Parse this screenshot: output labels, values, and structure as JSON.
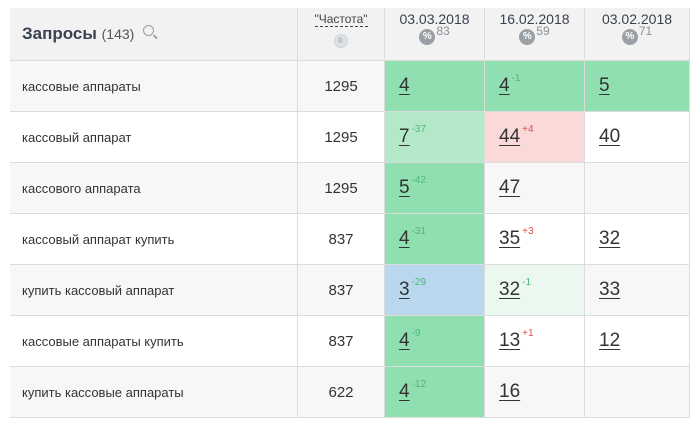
{
  "header": {
    "query_title": "Запросы",
    "query_count": "(143)",
    "frequency_label": "\"Частота\"",
    "dates": [
      {
        "date": "03.03.2018",
        "visibility": "83"
      },
      {
        "date": "16.02.2018",
        "visibility": "59"
      },
      {
        "date": "03.02.2018",
        "visibility": "71"
      }
    ]
  },
  "colors": {
    "green": "#8fdfb1",
    "light_green": "#b3e9c9",
    "pale_green": "#eaf8ef",
    "blue": "#b9d8ee",
    "pink": "#fbd9d9",
    "header_bg": "#f2f2f2",
    "row_alt": "#f7f7f7"
  },
  "rows": [
    {
      "query": "кассовые аппараты",
      "freq": "1295",
      "pos": [
        {
          "v": "4",
          "d": "",
          "bg": "green"
        },
        {
          "v": "4",
          "d": "-1",
          "dir": "up",
          "bg": "green"
        },
        {
          "v": "5",
          "d": "",
          "bg": "green"
        }
      ]
    },
    {
      "query": "кассовый аппарат",
      "freq": "1295",
      "pos": [
        {
          "v": "7",
          "d": "-37",
          "dir": "up",
          "bg": "light_green"
        },
        {
          "v": "44",
          "d": "+4",
          "dir": "down",
          "bg": "pink"
        },
        {
          "v": "40",
          "d": "",
          "bg": "white"
        }
      ]
    },
    {
      "query": "кассового аппарата",
      "freq": "1295",
      "pos": [
        {
          "v": "5",
          "d": "-42",
          "dir": "up",
          "bg": "green"
        },
        {
          "v": "47",
          "d": "",
          "bg": "white"
        },
        {
          "v": "",
          "d": "",
          "bg": "white"
        }
      ]
    },
    {
      "query": "кассовый аппарат купить",
      "freq": "837",
      "pos": [
        {
          "v": "4",
          "d": "-31",
          "dir": "up",
          "bg": "green"
        },
        {
          "v": "35",
          "d": "+3",
          "dir": "down",
          "bg": "white"
        },
        {
          "v": "32",
          "d": "",
          "bg": "white"
        }
      ]
    },
    {
      "query": "купить кассовый аппарат",
      "freq": "837",
      "pos": [
        {
          "v": "3",
          "d": "-29",
          "dir": "up",
          "bg": "blue"
        },
        {
          "v": "32",
          "d": "-1",
          "dir": "up",
          "bg": "pale_green"
        },
        {
          "v": "33",
          "d": "",
          "bg": "white"
        }
      ]
    },
    {
      "query": "кассовые аппараты купить",
      "freq": "837",
      "pos": [
        {
          "v": "4",
          "d": "-9",
          "dir": "up",
          "bg": "green"
        },
        {
          "v": "13",
          "d": "+1",
          "dir": "down",
          "bg": "white"
        },
        {
          "v": "12",
          "d": "",
          "bg": "white"
        }
      ]
    },
    {
      "query": "купить кассовые аппараты",
      "freq": "622",
      "pos": [
        {
          "v": "4",
          "d": "-12",
          "dir": "up",
          "bg": "green"
        },
        {
          "v": "16",
          "d": "",
          "bg": "white"
        },
        {
          "v": "",
          "d": "",
          "bg": "white"
        }
      ]
    }
  ]
}
